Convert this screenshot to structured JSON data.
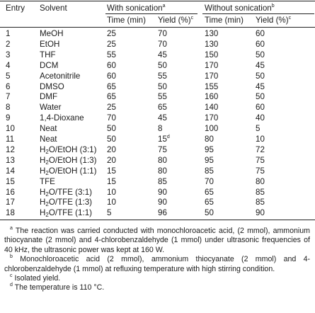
{
  "table": {
    "headers": {
      "entry": "Entry",
      "solvent": "Solvent",
      "with_sonication": "With sonication",
      "with_sonication_mark": "a",
      "without_sonication": "Without sonication",
      "without_sonication_mark": "b",
      "time": "Time (min)",
      "yield": "Yield (%)",
      "yield_mark": "c"
    },
    "rows": [
      {
        "entry": "1",
        "solvent": "MeOH",
        "t1": "25",
        "y1": "70",
        "t2": "130",
        "y2": "60"
      },
      {
        "entry": "2",
        "solvent": "EtOH",
        "t1": "25",
        "y1": "70",
        "t2": "130",
        "y2": "60"
      },
      {
        "entry": "3",
        "solvent": "THF",
        "t1": "55",
        "y1": "45",
        "t2": "150",
        "y2": "50"
      },
      {
        "entry": "4",
        "solvent": "DCM",
        "t1": "60",
        "y1": "50",
        "t2": "170",
        "y2": "45"
      },
      {
        "entry": "5",
        "solvent": "Acetonitrile",
        "t1": "60",
        "y1": "55",
        "t2": "170",
        "y2": "50"
      },
      {
        "entry": "6",
        "solvent": "DMSO",
        "t1": "65",
        "y1": "50",
        "t2": "155",
        "y2": "45"
      },
      {
        "entry": "7",
        "solvent": "DMF",
        "t1": "65",
        "y1": "55",
        "t2": "160",
        "y2": "50"
      },
      {
        "entry": "8",
        "solvent": "Water",
        "t1": "25",
        "y1": "65",
        "t2": "140",
        "y2": "60"
      },
      {
        "entry": "9",
        "solvent": "1,4-Dioxane",
        "t1": "70",
        "y1": "45",
        "t2": "170",
        "y2": "40"
      },
      {
        "entry": "10",
        "solvent": "Neat",
        "t1": "50",
        "y1": "8",
        "t2": "100",
        "y2": "5"
      },
      {
        "entry": "11",
        "solvent": "Neat",
        "t1": "50",
        "y1": "15",
        "y1_mark": "d",
        "t2": "80",
        "y2": "10"
      },
      {
        "entry": "12",
        "solvent_pre": "H",
        "solvent_sub": "2",
        "solvent_post": "O/EtOH (3:1)",
        "t1": "20",
        "y1": "75",
        "t2": "95",
        "y2": "72"
      },
      {
        "entry": "13",
        "solvent_pre": "H",
        "solvent_sub": "2",
        "solvent_post": "O/EtOH (1:3)",
        "t1": "20",
        "y1": "80",
        "t2": "95",
        "y2": "75"
      },
      {
        "entry": "14",
        "solvent_pre": "H",
        "solvent_sub": "2",
        "solvent_post": "O/EtOH (1:1)",
        "t1": "15",
        "y1": "80",
        "t2": "85",
        "y2": "75"
      },
      {
        "entry": "15",
        "solvent": "TFE",
        "t1": "15",
        "y1": "85",
        "t2": "70",
        "y2": "80"
      },
      {
        "entry": "16",
        "solvent_pre": "H",
        "solvent_sub": "2",
        "solvent_post": "O/TFE (3:1)",
        "t1": "10",
        "y1": "90",
        "t2": "65",
        "y2": "85"
      },
      {
        "entry": "17",
        "solvent_pre": "H",
        "solvent_sub": "2",
        "solvent_post": "O/TFE (1:3)",
        "t1": "10",
        "y1": "90",
        "t2": "65",
        "y2": "85"
      },
      {
        "entry": "18",
        "solvent_pre": "H",
        "solvent_sub": "2",
        "solvent_post": "O/TFE (1:1)",
        "t1": "5",
        "y1": "96",
        "t2": "50",
        "y2": "90"
      }
    ]
  },
  "footnotes": [
    {
      "mark": "a",
      "text": " The reaction was carried conducted with monochloroacetic acid, (2 mmol), ammonium thiocyanate (2 mmol) and 4-chlorobenzaldehyde (1 mmol) under ultrasonic frequencies of 40 kHz, the ultrasonic power was kept at 160 W."
    },
    {
      "mark": "b",
      "text": " Monochloroacetic acid (2 mmol), ammonium thiocyanate (2 mmol) and 4-chlorobenzaldehyde (1 mmol) at refluxing temperature with high stirring condition."
    },
    {
      "mark": "c",
      "text": " Isolated yield."
    },
    {
      "mark": "d",
      "text": " The temperature is 110 °C."
    }
  ]
}
